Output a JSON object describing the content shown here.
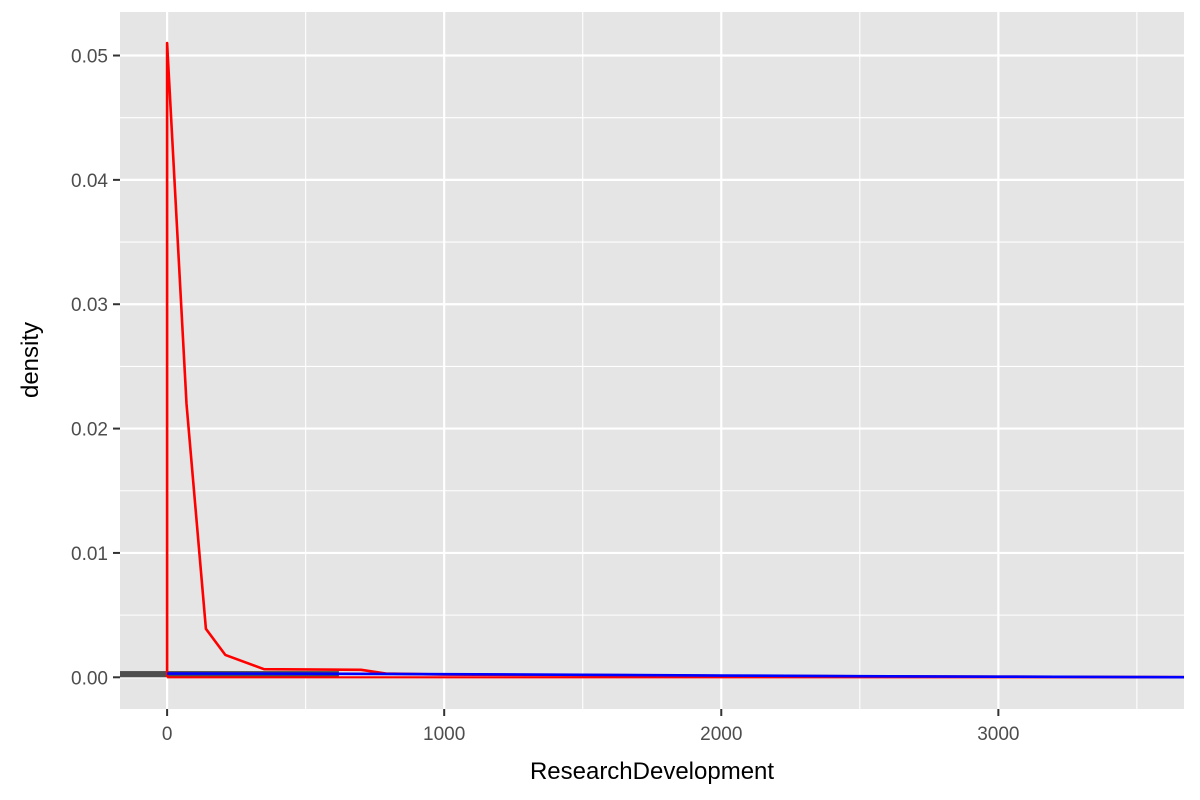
{
  "chart_data": {
    "type": "area",
    "title": "",
    "xlabel": "ResearchDevelopment",
    "ylabel": "density",
    "xlim": [
      -170,
      3670
    ],
    "ylim": [
      -0.00255,
      0.0535
    ],
    "x_ticks": [
      0,
      1000,
      2000,
      3000
    ],
    "x_tick_labels": [
      "0",
      "1000",
      "2000",
      "3000"
    ],
    "y_ticks": [
      0,
      0.01,
      0.02,
      0.03,
      0.04,
      0.05
    ],
    "y_tick_labels": [
      "0.00",
      "0.01",
      "0.02",
      "0.03",
      "0.04",
      "0.05"
    ],
    "grid": true,
    "legend": "none",
    "colors": {
      "panel": "#e5e5e5",
      "grid": "#ffffff",
      "bar": "#4d4d4d",
      "red_series": "#ff0000",
      "blue_series": "#0000ff"
    },
    "series": [
      {
        "color": "#ff0000",
        "kind": "density-outline",
        "x": [
          0,
          0,
          70,
          140,
          210,
          350,
          700,
          790,
          1000,
          1500,
          2000,
          2500,
          3000,
          3500,
          3670
        ],
        "y": [
          0,
          0.051,
          0.022,
          0.0039,
          0.0018,
          0.00065,
          0.0006,
          0.0003,
          0.00022,
          0.00018,
          0.00012,
          8e-05,
          5e-05,
          2e-05,
          1e-05
        ]
      },
      {
        "color": "#0000ff",
        "kind": "density-line",
        "x": [
          0,
          500,
          1000,
          1500,
          2000,
          2500,
          3000,
          3500,
          3670
        ],
        "y": [
          0.0003,
          0.00029,
          0.00025,
          0.0002,
          0.00014,
          9e-05,
          5e-05,
          2e-05,
          1e-05
        ]
      }
    ],
    "bars": [
      {
        "x_start": -170,
        "x_end": 620,
        "y": 0.0005
      }
    ]
  }
}
